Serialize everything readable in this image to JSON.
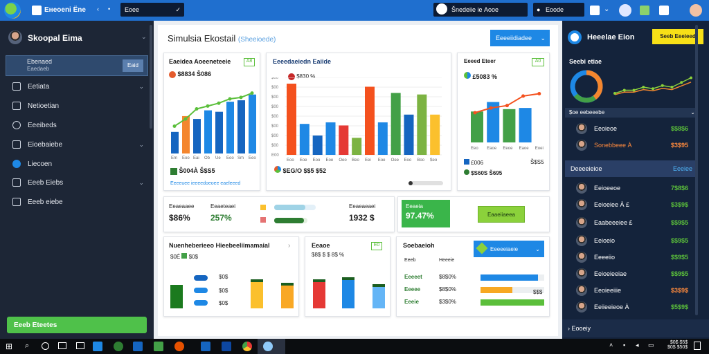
{
  "topbar": {
    "app_title": "Eнeoeni Ëne",
    "search_text": "Eoee",
    "search_box": "Šnedeiie ie Аooe",
    "right_box": "Eoode"
  },
  "sidebar": {
    "user_name": "Skoopal Eima",
    "selected_title": "Ebenaed",
    "selected_sub": "Eaedaeb",
    "selected_btn": "Eaid",
    "items": [
      {
        "label": "Eetiata"
      },
      {
        "label": "Netioetian"
      },
      {
        "label": "Eeeibeds"
      },
      {
        "label": "Eioebaiebe"
      },
      {
        "label": "Liecoen"
      },
      {
        "label": "Eeeb Eiebs"
      },
      {
        "label": "Eeeb eiebe"
      }
    ],
    "bottom_button": "Eeeb Eteetes"
  },
  "main": {
    "title": "Simulsia Ekostail",
    "title_sub": "(Sheeioede)",
    "top_button": "Eeeeiidiadee"
  },
  "card1": {
    "title": "Eaeidea Aoeeneteeie",
    "badge": "A8",
    "value": "$8834 Š086",
    "legend_val": "Š004À Š$S5",
    "footer": "Eeeeuee ieeeedoeoee eaeleeed",
    "chart_data": {
      "type": "bar",
      "categories": [
        "Em",
        "Eoo",
        "Eai",
        "Ob",
        "Ue",
        "Eoo",
        "Sm",
        "Eeo"
      ],
      "values": [
        30,
        52,
        48,
        60,
        58,
        72,
        74,
        82
      ],
      "line": [
        38,
        48,
        62,
        66,
        70,
        76,
        78,
        84
      ],
      "ylim": [
        0,
        100
      ]
    }
  },
  "card2": {
    "title": "Eeeedaeiedn Eaiide",
    "value": "$830 %",
    "footer_val": "$EG/O $$5 $52",
    "yticks": [
      "E00",
      "$00",
      "$00",
      "$00",
      "$00",
      "$00",
      "$00",
      "$00",
      "$00"
    ],
    "chart_data": {
      "type": "bar",
      "categories": [
        "Eoo",
        "Eoe",
        "Eoo",
        "Eoe",
        "Oeo",
        "Beo",
        "Eei",
        "Eoe",
        "Oee",
        "Eoo",
        "Boo",
        "$eo"
      ],
      "values": [
        92,
        40,
        25,
        42,
        38,
        22,
        88,
        42,
        80,
        52,
        78,
        52
      ],
      "ylim": [
        0,
        100
      ]
    }
  },
  "card3": {
    "title": "Eeeed Eteer",
    "badge": "A0",
    "value": "£5083 %",
    "legend_a": "£006",
    "legend_b": "$S60S Š695",
    "legend_c": "Š$S5",
    "chart_data": {
      "type": "bar",
      "categories": [
        "Eeo",
        "Eaoe",
        "Eeoe",
        "Eaoe",
        "Eoei"
      ],
      "values": [
        52,
        68,
        56,
        58,
        52
      ],
      "line": [
        50,
        58,
        62,
        78,
        82
      ],
      "ylim": [
        0,
        100
      ]
    }
  },
  "kpis": {
    "a_label": "Eeaeaaee",
    "a_value": "$86%",
    "b_label": "Eeaeteaei",
    "b_value": "257%",
    "c_label": "Eeaeaeaei",
    "c_value": "1932 $",
    "d_label": "Eeaeia",
    "d_value": "97.47%",
    "d_button": "Eaaeiiaeea",
    "prog_a_pct": 75,
    "prog_b_pct": 90
  },
  "card4": {
    "title": "Nuenheberieeo Hieebeeliimamaial",
    "legend_a": "$0É",
    "legend_b": "$0$",
    "vals": [
      "$0$",
      "$0$",
      "$0$"
    ],
    "bars": [
      60,
      85,
      75
    ]
  },
  "card5": {
    "title": "Eeaoe",
    "badge": "E0",
    "value": "$8$ $ $ 8$ %",
    "bars": [
      85,
      90,
      70
    ]
  },
  "card6": {
    "title": "Soebaeioh",
    "button": "Eeeeeiaeie",
    "col_a": "Eeeb",
    "col_b": "Heeeie",
    "rows": [
      {
        "name": "Eeeeet",
        "val": "$8$0%",
        "pct": 90,
        "color": "#1e88e5"
      },
      {
        "name": "Eeeee",
        "val": "$8$0%",
        "pct": 50,
        "color": "#f7a823"
      },
      {
        "name": "Eeeie",
        "val": "$3$0%",
        "pct": 100,
        "color": "#5bbf3b"
      }
    ],
    "side": "$$$"
  },
  "rightbar": {
    "title": "Heeelae Eion",
    "button": "Seeb Eeeieed",
    "sub": "Seebi etiae",
    "list_head": "$oe eebeeebe",
    "section": "Deeeeieioe",
    "section_btn": "Eeeiee",
    "footer": "Eooeiy",
    "users": [
      {
        "name": "Eeoieoe",
        "val": "$$8$6",
        "color": "#5bbf3b"
      },
      {
        "name": "Sonebbeee À",
        "val": "$3$95",
        "color": "#ff8a3d",
        "hl": true
      },
      {
        "name": "Eeioeeoe",
        "val": "7$8$6",
        "color": "#5bbf3b"
      },
      {
        "name": "Eeioeiee À £",
        "val": "$3$9$",
        "color": "#5bbf3b"
      },
      {
        "name": "Eaabeeeiee £",
        "val": "$$9$5",
        "color": "#5bbf3b"
      },
      {
        "name": "Eeioeio",
        "val": "$$9$5",
        "color": "#5bbf3b"
      },
      {
        "name": "Eeeeiio",
        "val": "$$9$5",
        "color": "#5bbf3b"
      },
      {
        "name": "Eeioeieeiae",
        "val": "$$9$5",
        "color": "#5bbf3b"
      },
      {
        "name": "Eeoieeiiie",
        "val": "$3$9$",
        "color": "#ff8a3d"
      },
      {
        "name": "Eeiieeieoe À",
        "val": "$5$9$",
        "color": "#5bbf3b"
      }
    ],
    "donut_pct": 80,
    "spark": [
      20,
      30,
      30,
      40,
      35,
      45,
      40,
      55,
      70
    ]
  },
  "taskbar": {
    "time": "$0$ $5$",
    "date": "$0$ $50$"
  }
}
